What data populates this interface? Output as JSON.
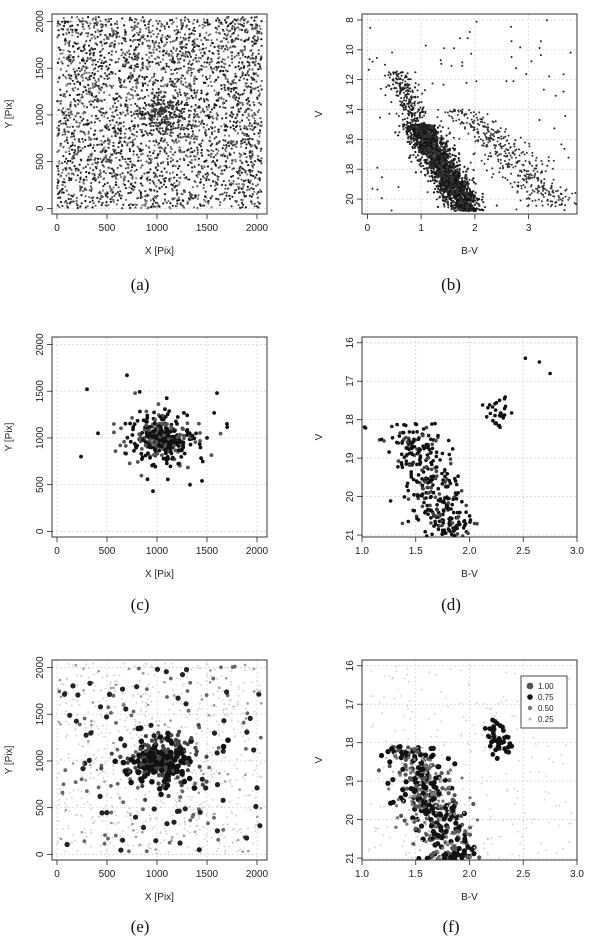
{
  "chart_data": [
    {
      "id": "a",
      "type": "scatter",
      "caption": "(a)",
      "xlabel": "X [Pix]",
      "ylabel": "Y [Pix]",
      "xlim": [
        -50,
        2100
      ],
      "ylim": [
        -60,
        2080
      ],
      "reverse_y": false,
      "xticks": [
        0,
        500,
        1000,
        1500,
        2000
      ],
      "yticks": [
        0,
        500,
        1000,
        1500,
        2000
      ],
      "grid": true,
      "distribution": "uniform field",
      "x_range": [
        0,
        2048
      ],
      "y_range": [
        0,
        2048
      ],
      "n_points": 3200
    },
    {
      "id": "b",
      "type": "scatter",
      "caption": "(b)",
      "xlabel": "B-V",
      "ylabel": "V",
      "xlim": [
        -0.1,
        3.9
      ],
      "ylim": [
        7.6,
        21.0
      ],
      "reverse_y": true,
      "xticks": [
        0,
        1,
        2,
        3
      ],
      "yticks": [
        8,
        10,
        12,
        14,
        16,
        18,
        20
      ],
      "grid": true,
      "n_points": 3000
    },
    {
      "id": "c",
      "type": "scatter",
      "caption": "(c)",
      "xlabel": "X [Pix]",
      "ylabel": "Y [Pix]",
      "xlim": [
        -50,
        2100
      ],
      "ylim": [
        -60,
        2080
      ],
      "reverse_y": false,
      "xticks": [
        0,
        500,
        1000,
        1500,
        2000
      ],
      "yticks": [
        0,
        500,
        1000,
        1500,
        2000
      ],
      "grid": true,
      "cluster_center": [
        1050,
        1000
      ],
      "n_points": 380
    },
    {
      "id": "d",
      "type": "scatter",
      "caption": "(d)",
      "xlabel": "B-V",
      "ylabel": "V",
      "xlim": [
        1.0,
        3.0
      ],
      "ylim": [
        15.85,
        21.05
      ],
      "reverse_y": true,
      "xticks": [
        1.0,
        1.5,
        2.0,
        2.5,
        3.0
      ],
      "yticks": [
        16,
        17,
        18,
        19,
        20,
        21
      ],
      "grid": true,
      "n_points": 380
    },
    {
      "id": "e",
      "type": "scatter",
      "caption": "(e)",
      "xlabel": "X [Pix]",
      "ylabel": "Y [Pix]",
      "xlim": [
        -50,
        2100
      ],
      "ylim": [
        -60,
        2080
      ],
      "reverse_y": false,
      "xticks": [
        0,
        500,
        1000,
        1500,
        2000
      ],
      "yticks": [
        0,
        500,
        1000,
        1500,
        2000
      ],
      "grid": true,
      "cluster_center": [
        1050,
        1000
      ],
      "n_points": 1300,
      "encoding": "membership probability (size and shade)"
    },
    {
      "id": "f",
      "type": "scatter",
      "caption": "(f)",
      "xlabel": "B-V",
      "ylabel": "V",
      "xlim": [
        1.0,
        3.0
      ],
      "ylim": [
        15.85,
        21.05
      ],
      "reverse_y": true,
      "xticks": [
        1.0,
        1.5,
        2.0,
        2.5,
        3.0
      ],
      "yticks": [
        16,
        17,
        18,
        19,
        20,
        21
      ],
      "grid": true,
      "n_points": 900,
      "encoding": "membership probability (size and shade)",
      "legend": {
        "position": "top-right",
        "entries": [
          {
            "label": "1.00",
            "color": "#555555"
          },
          {
            "label": "0.75",
            "color": "#111111"
          },
          {
            "label": "0.50",
            "color": "#777777"
          },
          {
            "label": "0.25",
            "color": "#bbbbbb"
          }
        ]
      }
    }
  ]
}
